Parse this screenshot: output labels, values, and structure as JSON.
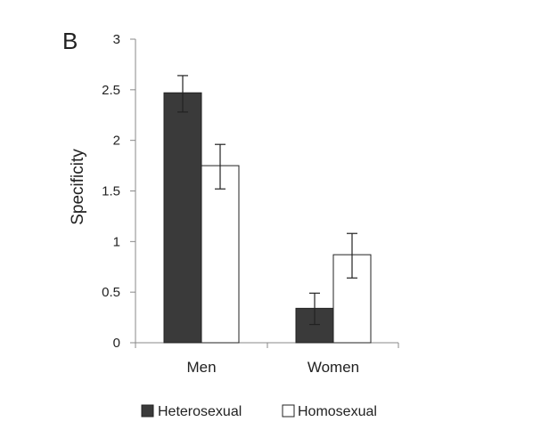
{
  "panel_label": "B",
  "chart_data": {
    "type": "bar",
    "title": "",
    "xlabel": "",
    "ylabel": "Specificity",
    "ylim": [
      0,
      3
    ],
    "yticks": [
      0,
      0.5,
      1,
      1.5,
      2,
      2.5,
      3
    ],
    "ytick_labels": [
      "0",
      "0.5",
      "1",
      "1.5",
      "2",
      "2.5",
      "3"
    ],
    "grid": false,
    "legend_position": "bottom",
    "categories": [
      "Men",
      "Women"
    ],
    "series": [
      {
        "name": "Heterosexual",
        "color": "#3a3a3a",
        "values": [
          2.47,
          0.34
        ],
        "error_low": [
          2.28,
          0.18
        ],
        "error_high": [
          2.64,
          0.49
        ]
      },
      {
        "name": "Homosexual",
        "color": "#ffffff",
        "values": [
          1.75,
          0.87
        ],
        "error_low": [
          1.52,
          0.64
        ],
        "error_high": [
          1.96,
          1.08
        ]
      }
    ]
  }
}
